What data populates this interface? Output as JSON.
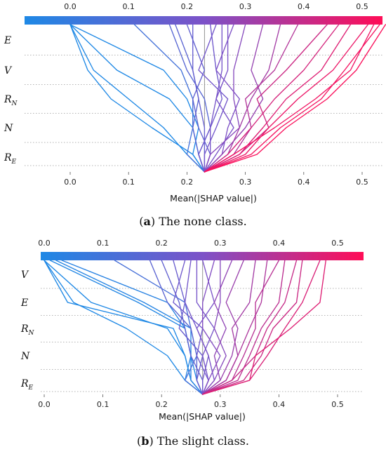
{
  "chart_data": [
    {
      "type": "line",
      "subtitle_prefix": "a",
      "subtitle": "The none class.",
      "xlabel": "Mean(|SHAP value|)",
      "xlim": [
        -0.08,
        0.54
      ],
      "xticks": [
        0.0,
        0.1,
        0.2,
        0.3,
        0.4,
        0.5
      ],
      "xtick_labels": [
        "0.0",
        "0.1",
        "0.2",
        "0.3",
        "0.4",
        "0.5"
      ],
      "features": [
        {
          "base": "E",
          "sub": ""
        },
        {
          "base": "V",
          "sub": ""
        },
        {
          "base": "R",
          "sub": "N"
        },
        {
          "base": "N",
          "sub": ""
        },
        {
          "base": "R",
          "sub": "E"
        }
      ],
      "base_value": 0.23,
      "colorbar": {
        "min": 0.0,
        "max": 0.55,
        "colors": [
          "#1e88e5",
          "#7c52c8",
          "#ff0d57"
        ]
      },
      "series": [
        {
          "values": [
            0.23,
            0.21,
            0.14,
            0.07,
            0.03,
            0.0
          ]
        },
        {
          "values": [
            0.23,
            0.2,
            0.16,
            0.1,
            0.04,
            0.0
          ]
        },
        {
          "values": [
            0.23,
            0.22,
            0.21,
            0.17,
            0.08,
            0.0
          ]
        },
        {
          "values": [
            0.23,
            0.21,
            0.22,
            0.2,
            0.16,
            0.0
          ]
        },
        {
          "values": [
            0.23,
            0.2,
            0.21,
            0.21,
            0.19,
            0.11
          ]
        },
        {
          "values": [
            0.23,
            0.22,
            0.24,
            0.23,
            0.2,
            0.17
          ]
        },
        {
          "values": [
            0.23,
            0.22,
            0.21,
            0.22,
            0.21,
            0.18
          ]
        },
        {
          "values": [
            0.23,
            0.23,
            0.23,
            0.22,
            0.21,
            0.21
          ]
        },
        {
          "values": [
            0.23,
            0.24,
            0.22,
            0.21,
            0.23,
            0.2
          ]
        },
        {
          "values": [
            0.23,
            0.22,
            0.24,
            0.26,
            0.25,
            0.24
          ]
        },
        {
          "values": [
            0.23,
            0.23,
            0.25,
            0.27,
            0.22,
            0.25
          ]
        },
        {
          "values": [
            0.23,
            0.24,
            0.24,
            0.25,
            0.26,
            0.26
          ]
        },
        {
          "values": [
            0.23,
            0.25,
            0.28,
            0.25,
            0.27,
            0.27
          ]
        },
        {
          "values": [
            0.23,
            0.26,
            0.27,
            0.29,
            0.25,
            0.28
          ]
        },
        {
          "values": [
            0.23,
            0.24,
            0.29,
            0.28,
            0.28,
            0.3
          ]
        },
        {
          "values": [
            0.23,
            0.26,
            0.3,
            0.33,
            0.31,
            0.33
          ]
        },
        {
          "values": [
            0.23,
            0.27,
            0.29,
            0.31,
            0.34,
            0.36
          ]
        },
        {
          "values": [
            0.23,
            0.28,
            0.31,
            0.3,
            0.35,
            0.39
          ]
        },
        {
          "values": [
            0.23,
            0.29,
            0.34,
            0.32,
            0.37,
            0.44
          ]
        },
        {
          "values": [
            0.23,
            0.27,
            0.31,
            0.35,
            0.4,
            0.46
          ]
        },
        {
          "values": [
            0.23,
            0.29,
            0.33,
            0.37,
            0.43,
            0.48
          ]
        },
        {
          "values": [
            0.23,
            0.3,
            0.34,
            0.39,
            0.45,
            0.51
          ]
        },
        {
          "values": [
            0.23,
            0.28,
            0.35,
            0.42,
            0.48,
            0.52
          ]
        },
        {
          "values": [
            0.23,
            0.31,
            0.36,
            0.43,
            0.47,
            0.53
          ]
        },
        {
          "values": [
            0.23,
            0.32,
            0.37,
            0.44,
            0.49,
            0.54
          ]
        }
      ]
    },
    {
      "type": "line",
      "subtitle_prefix": "b",
      "subtitle": "The slight class.",
      "xlabel": "Mean(|SHAP value|)",
      "xlim": [
        -0.01,
        0.55
      ],
      "xticks": [
        0.0,
        0.1,
        0.2,
        0.3,
        0.4,
        0.5
      ],
      "xtick_labels": [
        "0.0",
        "0.1",
        "0.2",
        "0.3",
        "0.4",
        "0.5"
      ],
      "features": [
        {
          "base": "V",
          "sub": ""
        },
        {
          "base": "E",
          "sub": ""
        },
        {
          "base": "R",
          "sub": "N"
        },
        {
          "base": "N",
          "sub": ""
        },
        {
          "base": "R",
          "sub": "E"
        }
      ],
      "base_value": 0.27,
      "colorbar": {
        "min": 0.0,
        "max": 0.55,
        "colors": [
          "#1e88e5",
          "#7c52c8",
          "#ff0d57"
        ]
      },
      "series": [
        {
          "values": [
            0.27,
            0.24,
            0.21,
            0.14,
            0.05,
            0.0
          ]
        },
        {
          "values": [
            0.27,
            0.25,
            0.24,
            0.21,
            0.08,
            0.0
          ]
        },
        {
          "values": [
            0.27,
            0.24,
            0.25,
            0.25,
            0.17,
            0.02
          ]
        },
        {
          "values": [
            0.27,
            0.25,
            0.24,
            0.22,
            0.04,
            0.0
          ]
        },
        {
          "values": [
            0.27,
            0.26,
            0.25,
            0.24,
            0.16,
            0.01
          ]
        },
        {
          "values": [
            0.27,
            0.25,
            0.25,
            0.24,
            0.21,
            0.03
          ]
        },
        {
          "values": [
            0.27,
            0.24,
            0.26,
            0.25,
            0.24,
            0.12
          ]
        },
        {
          "values": [
            0.27,
            0.26,
            0.26,
            0.25,
            0.21,
            0.18
          ]
        },
        {
          "values": [
            0.27,
            0.27,
            0.25,
            0.24,
            0.23,
            0.2
          ]
        },
        {
          "values": [
            0.27,
            0.26,
            0.27,
            0.23,
            0.24,
            0.22
          ]
        },
        {
          "values": [
            0.27,
            0.28,
            0.26,
            0.27,
            0.22,
            0.24
          ]
        },
        {
          "values": [
            0.27,
            0.27,
            0.28,
            0.26,
            0.24,
            0.25
          ]
        },
        {
          "values": [
            0.27,
            0.28,
            0.27,
            0.29,
            0.26,
            0.26
          ]
        },
        {
          "values": [
            0.27,
            0.29,
            0.28,
            0.26,
            0.29,
            0.27
          ]
        },
        {
          "values": [
            0.27,
            0.28,
            0.3,
            0.27,
            0.27,
            0.29
          ]
        },
        {
          "values": [
            0.27,
            0.29,
            0.31,
            0.29,
            0.3,
            0.3
          ]
        },
        {
          "values": [
            0.27,
            0.3,
            0.29,
            0.31,
            0.29,
            0.32
          ]
        },
        {
          "values": [
            0.27,
            0.3,
            0.32,
            0.33,
            0.31,
            0.34
          ]
        },
        {
          "values": [
            0.27,
            0.31,
            0.33,
            0.32,
            0.35,
            0.36
          ]
        },
        {
          "values": [
            0.27,
            0.31,
            0.33,
            0.35,
            0.37,
            0.38
          ]
        },
        {
          "values": [
            0.27,
            0.32,
            0.34,
            0.36,
            0.36,
            0.4
          ]
        },
        {
          "values": [
            0.27,
            0.33,
            0.35,
            0.37,
            0.4,
            0.41
          ]
        },
        {
          "values": [
            0.27,
            0.32,
            0.36,
            0.38,
            0.41,
            0.43
          ]
        },
        {
          "values": [
            0.27,
            0.34,
            0.37,
            0.39,
            0.43,
            0.44
          ]
        },
        {
          "values": [
            0.27,
            0.35,
            0.38,
            0.41,
            0.44,
            0.47
          ]
        },
        {
          "values": [
            0.27,
            0.35,
            0.36,
            0.42,
            0.47,
            0.48
          ]
        }
      ]
    }
  ]
}
